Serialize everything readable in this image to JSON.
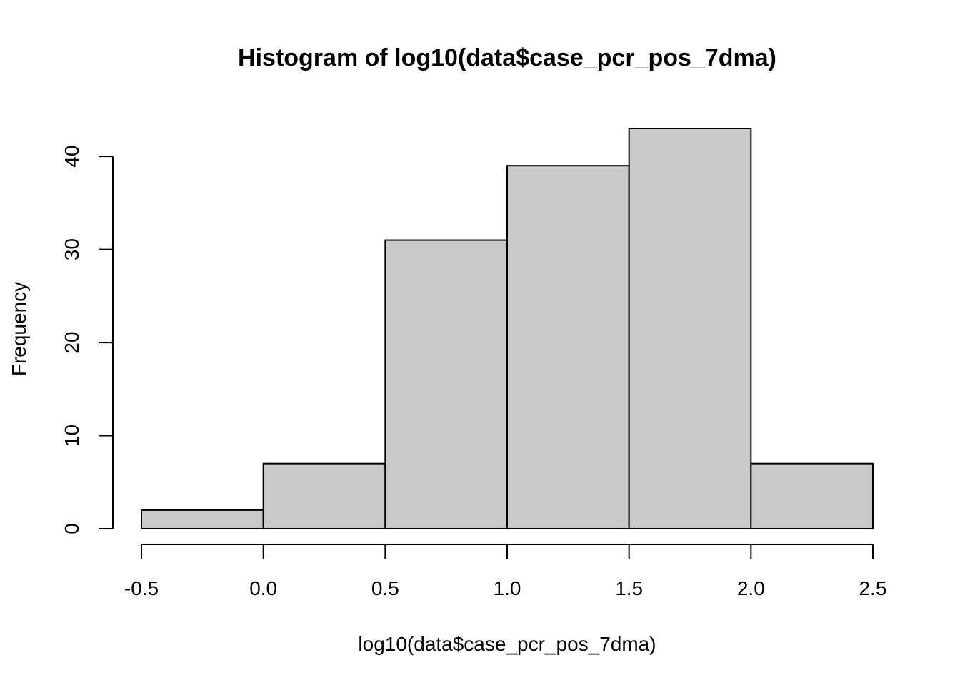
{
  "chart_data": {
    "type": "bar",
    "title": "Histogram of log10(data$case_pcr_pos_7dma)",
    "xlabel": "log10(data$case_pcr_pos_7dma)",
    "ylabel": "Frequency",
    "bins": [
      {
        "x0": -0.5,
        "x1": 0.0,
        "count": 2
      },
      {
        "x0": 0.0,
        "x1": 0.5,
        "count": 7
      },
      {
        "x0": 0.5,
        "x1": 1.0,
        "count": 31
      },
      {
        "x0": 1.0,
        "x1": 1.5,
        "count": 39
      },
      {
        "x0": 1.5,
        "x1": 2.0,
        "count": 43
      },
      {
        "x0": 2.0,
        "x1": 2.5,
        "count": 7
      }
    ],
    "xlim": [
      -0.5,
      2.5
    ],
    "ylim": [
      0,
      43
    ],
    "xticks": [
      -0.5,
      0.0,
      0.5,
      1.0,
      1.5,
      2.0,
      2.5
    ],
    "xtick_labels": [
      "-0.5",
      "0.0",
      "0.5",
      "1.0",
      "1.5",
      "2.0",
      "2.5"
    ],
    "yticks": [
      0,
      10,
      20,
      30,
      40
    ],
    "ytick_labels": [
      "0",
      "10",
      "20",
      "30",
      "40"
    ],
    "bar_color": "#c9c9c9",
    "edge_color": "#000000",
    "grid": false,
    "legend": "none"
  }
}
